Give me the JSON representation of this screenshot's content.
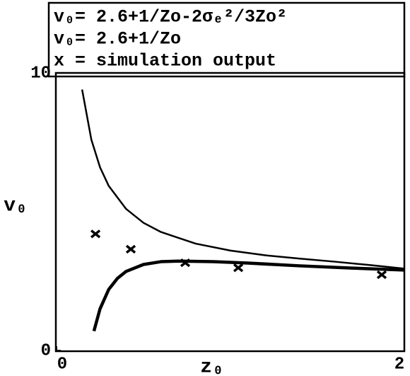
{
  "chart_data": {
    "type": "line",
    "xlabel": "z₀",
    "ylabel": "v₀",
    "xlim": [
      0,
      2
    ],
    "xticks": [
      0,
      2
    ],
    "ylim": [
      0,
      10
    ],
    "yticks": [
      0,
      10
    ],
    "series": [
      {
        "name": "v₀= 2.6+1/Zo-2σₑ²/3Zo²",
        "color": "#000000",
        "line_width": 4.5,
        "x": [
          0.215,
          0.25,
          0.3,
          0.35,
          0.4,
          0.5,
          0.6,
          0.7,
          0.9,
          1.1,
          1.4,
          1.7,
          2.0
        ],
        "values": [
          0.7,
          1.5,
          2.2,
          2.6,
          2.85,
          3.1,
          3.2,
          3.22,
          3.2,
          3.15,
          3.05,
          2.97,
          2.9
        ]
      },
      {
        "name": "v₀= 2.6+1/Zo",
        "color": "#000000",
        "line_width": 2.5,
        "x": [
          0.147,
          0.2,
          0.25,
          0.3,
          0.4,
          0.5,
          0.6,
          0.8,
          1.0,
          1.2,
          1.4,
          1.6,
          1.8,
          2.0
        ],
        "values": [
          9.4,
          7.6,
          6.6,
          5.93,
          5.1,
          4.6,
          4.27,
          3.85,
          3.6,
          3.43,
          3.31,
          3.2,
          3.08,
          2.95
        ]
      },
      {
        "name": "x = simulation output",
        "color": "#000000",
        "marker": "x",
        "x": [
          0.224,
          0.427,
          0.74,
          1.045,
          1.87
        ],
        "values": [
          4.2,
          3.65,
          3.16,
          2.98,
          2.73
        ]
      }
    ]
  }
}
